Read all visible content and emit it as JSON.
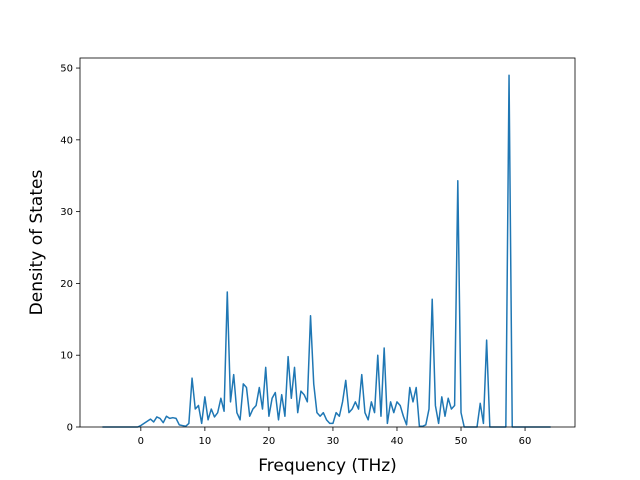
{
  "chart_data": {
    "type": "line",
    "xlabel": "Frequency (THz)",
    "ylabel": "Density of States",
    "x": [
      -6,
      -5.5,
      -5,
      -4.5,
      -4,
      -3.5,
      -3,
      -2.5,
      -2,
      -1.5,
      -1,
      -0.5,
      0,
      0.5,
      1,
      1.5,
      2,
      2.5,
      3,
      3.5,
      4,
      4.5,
      5,
      5.5,
      6,
      6.5,
      7,
      7.5,
      8,
      8.5,
      9,
      9.5,
      10,
      10.5,
      11,
      11.5,
      12,
      12.5,
      13,
      13.5,
      14,
      14.5,
      15,
      15.5,
      16,
      16.5,
      17,
      17.5,
      18,
      18.5,
      19,
      19.5,
      20,
      20.5,
      21,
      21.5,
      22,
      22.5,
      23,
      23.5,
      24,
      24.5,
      25,
      25.5,
      26,
      26.5,
      27,
      27.5,
      28,
      28.5,
      29,
      29.5,
      30,
      30.5,
      31,
      31.5,
      32,
      32.5,
      33,
      33.5,
      34,
      34.5,
      35,
      35.5,
      36,
      36.5,
      37,
      37.5,
      38,
      38.5,
      39,
      39.5,
      40,
      40.5,
      41,
      41.5,
      42,
      42.5,
      43,
      43.5,
      44,
      44.5,
      45,
      45.5,
      46,
      46.5,
      47,
      47.5,
      48,
      48.5,
      49,
      49.5,
      50,
      50.5,
      51,
      51.5,
      52,
      52.5,
      53,
      53.5,
      54,
      54.5,
      55,
      55.5,
      56,
      56.5,
      57,
      57.5,
      58,
      58.5,
      59,
      59.5,
      60,
      60.5,
      61,
      61.5,
      62,
      62.5,
      63,
      63.5,
      64
    ],
    "series": [
      {
        "color": "#1f77b4",
        "values": [
          0,
          0,
          0,
          0,
          0,
          0,
          0,
          0,
          0,
          0,
          0,
          0,
          0.2,
          0.5,
          0.8,
          1.1,
          0.7,
          1.4,
          1.2,
          0.6,
          1.5,
          1.2,
          1.3,
          1.2,
          0.3,
          0.2,
          0.1,
          0.5,
          6.8,
          2.5,
          3.0,
          0.5,
          4.2,
          1.0,
          2.5,
          1.4,
          2.0,
          4.0,
          2.2,
          18.8,
          3.5,
          7.3,
          2.0,
          1.0,
          6.0,
          5.5,
          1.5,
          2.5,
          3.0,
          5.5,
          2.5,
          8.3,
          1.5,
          4.0,
          4.8,
          1.0,
          4.5,
          1.5,
          9.8,
          4.0,
          8.3,
          2.0,
          5.0,
          4.5,
          3.5,
          15.5,
          6.0,
          2.0,
          1.5,
          2.0,
          1.0,
          0.5,
          0.5,
          2.0,
          1.5,
          3.5,
          6.5,
          2.0,
          2.5,
          3.5,
          2.5,
          7.3,
          2.0,
          1.0,
          3.5,
          2.0,
          10.0,
          1.5,
          11.0,
          0.5,
          3.5,
          2.0,
          3.5,
          3.0,
          1.5,
          0.3,
          5.5,
          3.5,
          5.5,
          0.1,
          0.1,
          0.3,
          2.5,
          17.8,
          3.0,
          0.5,
          4.2,
          1.5,
          4.0,
          2.5,
          3.0,
          34.3,
          2.0,
          0,
          0,
          0,
          0,
          0,
          3.3,
          0.5,
          12.1,
          0,
          0,
          0,
          0,
          0,
          0,
          49.0,
          0,
          0,
          0,
          0,
          0,
          0,
          0,
          0,
          0,
          0,
          0,
          0,
          0
        ]
      }
    ],
    "xlim": [
      -9.5,
      67.8
    ],
    "ylim": [
      0,
      51.4
    ],
    "xticks": [
      0,
      10,
      20,
      30,
      40,
      50,
      60
    ],
    "yticks": [
      0,
      10,
      20,
      30,
      40,
      50
    ]
  }
}
